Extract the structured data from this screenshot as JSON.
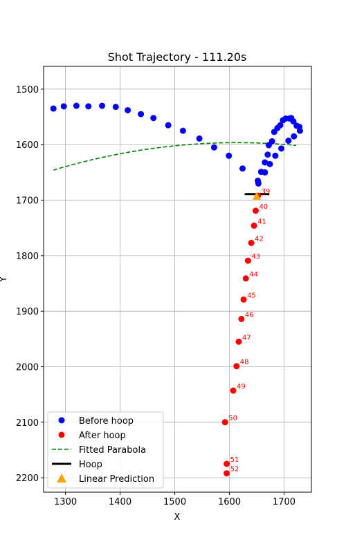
{
  "chart_data": {
    "type": "scatter",
    "title": "Shot Trajectory - 111.20s",
    "xlabel": "X",
    "ylabel": "Y",
    "xlim": [
      1260,
      1750
    ],
    "ylim": [
      2226,
      1459
    ],
    "y_inverted": true,
    "grid": true,
    "x_ticks": [
      1300,
      1400,
      1500,
      1600,
      1700
    ],
    "y_ticks": [
      1500,
      1600,
      1700,
      1800,
      1900,
      2000,
      2100,
      2200
    ],
    "legend_position": "lower-left",
    "colors": {
      "before": "#0000ff",
      "after": "#ff0000",
      "parabola": "#008000",
      "hoop": "#000000",
      "prediction": "#ffa500"
    },
    "series": [
      {
        "name": "Before hoop",
        "marker": "circle",
        "points": [
          [
            1278,
            1535
          ],
          [
            1297,
            1531
          ],
          [
            1320,
            1530
          ],
          [
            1342,
            1531
          ],
          [
            1367,
            1530
          ],
          [
            1392,
            1532
          ],
          [
            1414,
            1538
          ],
          [
            1438,
            1545
          ],
          [
            1461,
            1552
          ],
          [
            1488,
            1565
          ],
          [
            1515,
            1575
          ],
          [
            1545,
            1589
          ],
          [
            1572,
            1605
          ],
          [
            1599,
            1620
          ],
          [
            1624,
            1643
          ],
          [
            1652,
            1665
          ],
          [
            1653,
            1670
          ],
          [
            1658,
            1649
          ],
          [
            1665,
            1650
          ],
          [
            1665,
            1632
          ],
          [
            1670,
            1618
          ],
          [
            1672,
            1601
          ],
          [
            1674,
            1635
          ],
          [
            1678,
            1594
          ],
          [
            1682,
            1577
          ],
          [
            1684,
            1620
          ],
          [
            1688,
            1570
          ],
          [
            1693,
            1565
          ],
          [
            1695,
            1607
          ],
          [
            1698,
            1556
          ],
          [
            1703,
            1553
          ],
          [
            1708,
            1593
          ],
          [
            1710,
            1553
          ],
          [
            1713,
            1552
          ],
          [
            1717,
            1558
          ],
          [
            1718,
            1585
          ],
          [
            1723,
            1566
          ],
          [
            1728,
            1568
          ],
          [
            1729,
            1575
          ]
        ]
      },
      {
        "name": "After hoop",
        "marker": "circle",
        "points": [
          [
            1652,
            1692,
            "39"
          ],
          [
            1648,
            1719,
            "40"
          ],
          [
            1645,
            1746,
            "41"
          ],
          [
            1640,
            1777,
            "42"
          ],
          [
            1634,
            1809,
            "43"
          ],
          [
            1630,
            1841,
            "44"
          ],
          [
            1626,
            1879,
            "45"
          ],
          [
            1622,
            1914,
            "46"
          ],
          [
            1617,
            1955,
            "47"
          ],
          [
            1613,
            1999,
            "48"
          ],
          [
            1607,
            2043,
            "49"
          ],
          [
            1592,
            2100,
            "50"
          ],
          [
            1595,
            2175,
            "51"
          ],
          [
            1595,
            2192,
            "52"
          ]
        ]
      },
      {
        "name": "Fitted Parabola",
        "style": "dashed",
        "curve": {
          "a": 0.0004376,
          "b": -1.4128,
          "c": 2736.7
        },
        "x_range": [
          1278,
          1722
        ]
      },
      {
        "name": "Hoop",
        "style": "line",
        "x_range": [
          1628,
          1673
        ],
        "y": 1689
      },
      {
        "name": "Linear Prediction",
        "marker": "triangle",
        "points": [
          [
            1650,
            1693
          ]
        ]
      }
    ]
  }
}
